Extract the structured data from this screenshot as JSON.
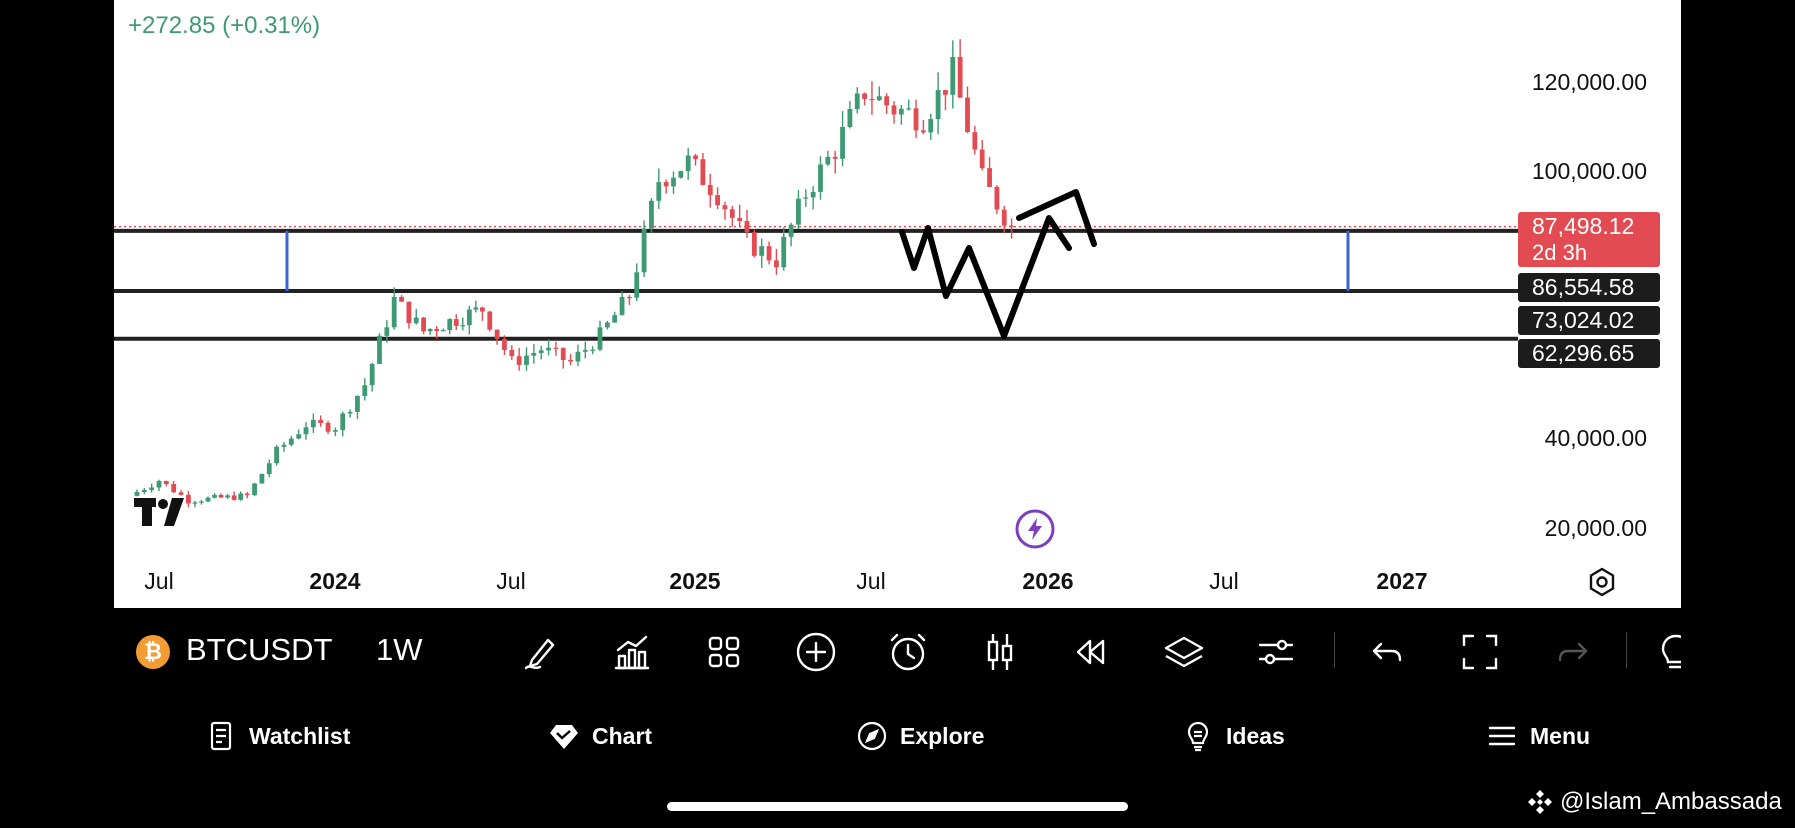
{
  "chart": {
    "change_text": "+272.85 (+0.31%)",
    "symbol": "BTCUSDT",
    "interval": "1W",
    "price_axis": [
      "120,000.00",
      "100,000.00",
      "40,000.00",
      "20,000.00"
    ],
    "date_axis": [
      {
        "label": "Jul",
        "bold": false
      },
      {
        "label": "2024",
        "bold": true
      },
      {
        "label": "Jul",
        "bold": false
      },
      {
        "label": "2025",
        "bold": true
      },
      {
        "label": "Jul",
        "bold": false
      },
      {
        "label": "2026",
        "bold": true
      },
      {
        "label": "Jul",
        "bold": false
      },
      {
        "label": "2027",
        "bold": true
      }
    ],
    "current_price": {
      "value": "87,498.12",
      "countdown": "2d 3h",
      "color": "#e34b52"
    },
    "level_badges": [
      "86,554.58",
      "73,024.02",
      "62,296.65"
    ],
    "colors": {
      "up": "#3d9a73",
      "down": "#e34b52",
      "level_line": "#222222",
      "marker": "#3b63d9"
    }
  },
  "chart_data": {
    "type": "candlestick",
    "interval": "1W",
    "symbol": "BTCUSDT",
    "last_price": 87498.12,
    "horizontal_levels": [
      86554.58,
      73024.02,
      62296.65
    ],
    "y_ticks": [
      120000,
      100000,
      40000,
      20000
    ],
    "x_ticks": [
      "Jul",
      "2024",
      "Jul",
      "2025",
      "Jul",
      "2026",
      "Jul",
      "2027"
    ],
    "trend_keypoints": [
      {
        "t": "2023-06",
        "p": 27000
      },
      {
        "t": "2023-07",
        "p": 30500
      },
      {
        "t": "2023-08",
        "p": 26000
      },
      {
        "t": "2023-10",
        "p": 27000
      },
      {
        "t": "2023-11",
        "p": 37000
      },
      {
        "t": "2023-12",
        "p": 43000
      },
      {
        "t": "2024-01",
        "p": 42500
      },
      {
        "t": "2024-02",
        "p": 52000
      },
      {
        "t": "2024-03",
        "p": 71000
      },
      {
        "t": "2024-04",
        "p": 64000
      },
      {
        "t": "2024-06",
        "p": 69000
      },
      {
        "t": "2024-07",
        "p": 57000
      },
      {
        "t": "2024-08",
        "p": 60000
      },
      {
        "t": "2024-09",
        "p": 57000
      },
      {
        "t": "2024-10",
        "p": 63000
      },
      {
        "t": "2024-11",
        "p": 72000
      },
      {
        "t": "2024-12",
        "p": 98000
      },
      {
        "t": "2025-01",
        "p": 102000
      },
      {
        "t": "2025-02",
        "p": 95000
      },
      {
        "t": "2025-03",
        "p": 84000
      },
      {
        "t": "2025-04",
        "p": 80000
      },
      {
        "t": "2025-05",
        "p": 95000
      },
      {
        "t": "2025-06",
        "p": 105000
      },
      {
        "t": "2025-07",
        "p": 118000
      },
      {
        "t": "2025-08",
        "p": 114000
      },
      {
        "t": "2025-09",
        "p": 112000
      },
      {
        "t": "2025-10",
        "p": 122000
      },
      {
        "t": "2025-11",
        "p": 98000
      },
      {
        "t": "2025-12",
        "p": 87498
      }
    ]
  },
  "toolbar": {
    "tools": [
      "brush-icon",
      "indicators-icon",
      "layout-icon",
      "add-icon",
      "alert-icon",
      "candles-icon",
      "replay-icon",
      "layers-icon",
      "settings-sliders-icon",
      "undo-icon",
      "fullscreen-icon",
      "redo-icon",
      "ideas-icon"
    ]
  },
  "nav": {
    "items": [
      {
        "label": "Watchlist",
        "icon": "watchlist-icon"
      },
      {
        "label": "Chart",
        "icon": "chart-diamond-icon"
      },
      {
        "label": "Explore",
        "icon": "compass-icon"
      },
      {
        "label": "Ideas",
        "icon": "lightbulb-icon"
      },
      {
        "label": "Menu",
        "icon": "menu-icon"
      }
    ]
  },
  "watermark": {
    "text": "@Islam_Ambassada"
  }
}
